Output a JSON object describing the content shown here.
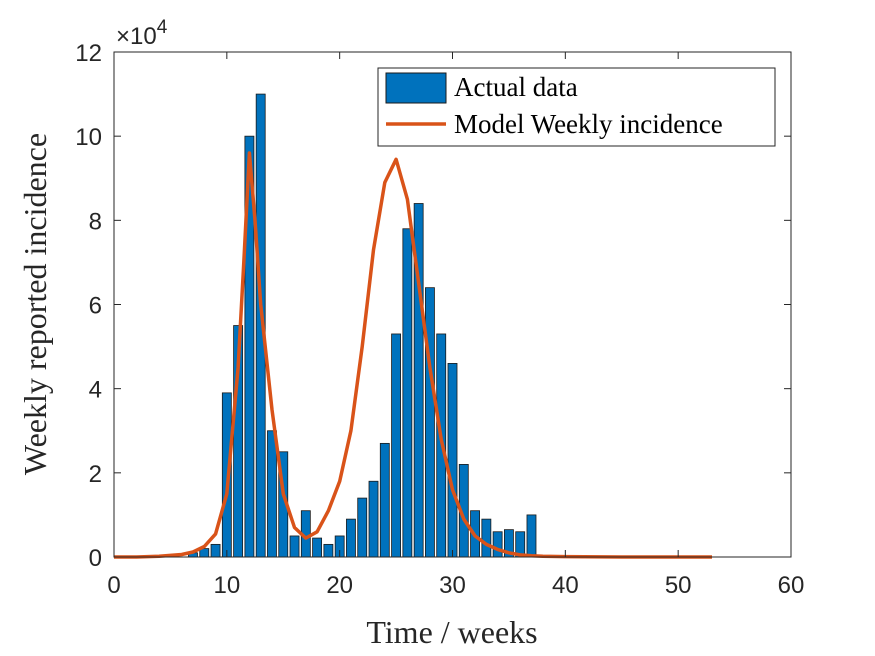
{
  "chart_data": {
    "type": "bar+line",
    "title": "",
    "xlabel": "Time / weeks",
    "ylabel": "Weekly reported incidence",
    "xlim": [
      0,
      60
    ],
    "ylim": [
      0,
      12
    ],
    "xticks": [
      "0",
      "10",
      "20",
      "30",
      "40",
      "50",
      "60"
    ],
    "yticks": [
      "0",
      "2",
      "4",
      "6",
      "8",
      "10",
      "12"
    ],
    "y_exponent": {
      "base": "×10",
      "power": "4"
    },
    "grid": false,
    "legend_position": "top-right",
    "colors": {
      "bars": "#0072BD",
      "line": "#D95319"
    },
    "series": [
      {
        "name": "Actual data",
        "kind": "bar",
        "x": [
          7,
          8,
          9,
          10,
          11,
          12,
          13,
          14,
          15,
          16,
          17,
          18,
          19,
          20,
          21,
          22,
          23,
          24,
          25,
          26,
          27,
          28,
          29,
          30,
          31,
          32,
          33,
          34,
          35,
          36,
          37
        ],
        "values": [
          0.1,
          0.2,
          0.3,
          3.9,
          5.5,
          10.0,
          11.0,
          3.0,
          2.5,
          0.5,
          1.1,
          0.45,
          0.3,
          0.5,
          0.9,
          1.4,
          1.8,
          2.7,
          5.3,
          7.8,
          8.4,
          6.4,
          5.3,
          4.6,
          2.2,
          1.1,
          0.9,
          0.6,
          0.65,
          0.6,
          1.0
        ]
      },
      {
        "name": "Model Weekly incidence",
        "kind": "line",
        "x": [
          0,
          2,
          4,
          6,
          7,
          8,
          9,
          10,
          11,
          11.5,
          12,
          12.5,
          13,
          14,
          15,
          16,
          17,
          18,
          19,
          20,
          21,
          22,
          23,
          24,
          25,
          26,
          27,
          28,
          29,
          30,
          31,
          32,
          33,
          34,
          35,
          36,
          37,
          38,
          40,
          45,
          50,
          53
        ],
        "values": [
          0.0,
          0.0,
          0.02,
          0.06,
          0.12,
          0.25,
          0.55,
          1.5,
          4.5,
          7.0,
          9.6,
          8.0,
          6.0,
          3.5,
          1.5,
          0.7,
          0.45,
          0.6,
          1.1,
          1.8,
          3.0,
          5.0,
          7.3,
          8.9,
          9.45,
          8.5,
          6.5,
          4.5,
          2.8,
          1.6,
          0.9,
          0.5,
          0.3,
          0.18,
          0.1,
          0.05,
          0.03,
          0.02,
          0.01,
          0.0,
          0.0,
          0.0
        ]
      }
    ]
  }
}
